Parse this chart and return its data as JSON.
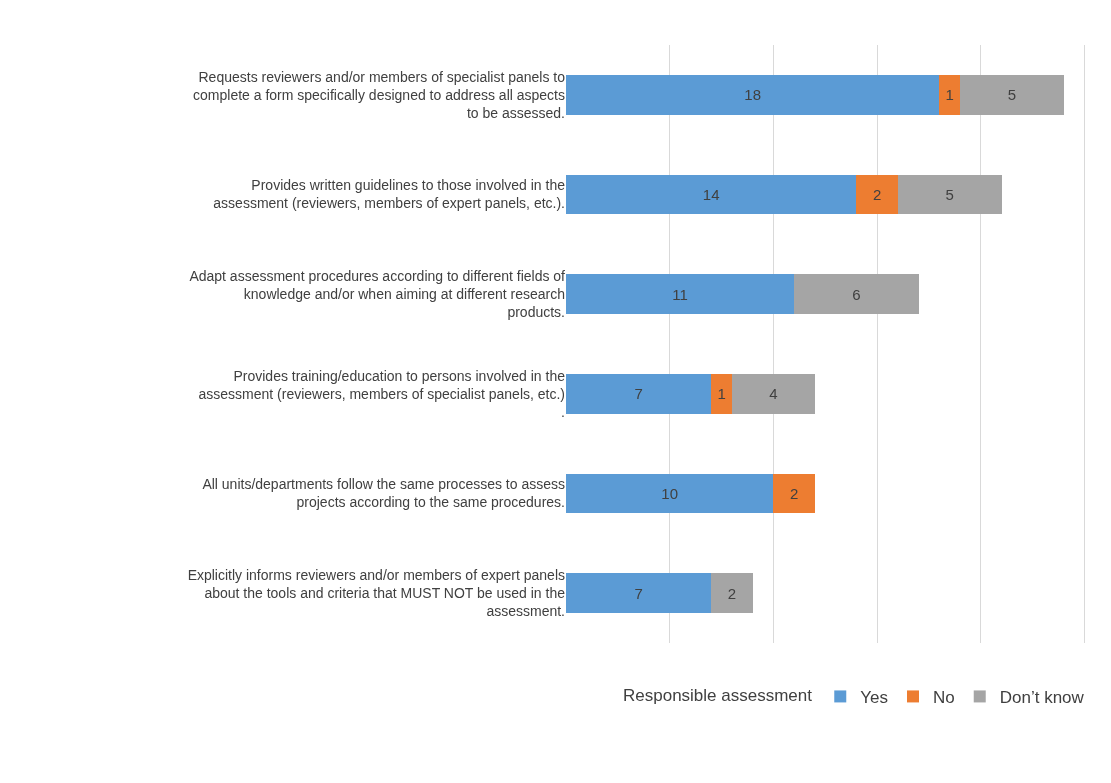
{
  "chart_data": {
    "type": "bar",
    "orientation": "horizontal",
    "stacked": true,
    "legend_title": "Responsible assessment",
    "categories": [
      "Requests reviewers and/or members of specialist panels to\ncomplete a form specifically designed to address all aspects\nto be assessed.",
      "Provides written guidelines to those involved in the\nassessment (reviewers, members of expert panels, etc.).",
      "Adapt assessment procedures according to different fields of\nknowledge and/or when aiming at different research\nproducts.",
      "Provides training/education to persons involved in the\nassessment (reviewers, members of specialist panels, etc.)\n.",
      "All units/departments follow the same processes to assess\nprojects according to the same procedures.",
      "Explicitly informs reviewers and/or members of expert panels\nabout the tools and criteria that MUST NOT be used in the\nassessment."
    ],
    "series": [
      {
        "name": "Yes",
        "color": "#5b9bd5",
        "values": [
          18,
          14,
          11,
          7,
          10,
          7
        ]
      },
      {
        "name": "No",
        "color": "#ed7d31",
        "values": [
          1,
          2,
          null,
          1,
          2,
          null
        ]
      },
      {
        "name": "Don’t know",
        "color": "#a5a5a5",
        "values": [
          5,
          5,
          6,
          4,
          null,
          2
        ]
      }
    ],
    "tick_labels": "y",
    "grid": "x",
    "legend": "bottom",
    "data_labels": true
  }
}
